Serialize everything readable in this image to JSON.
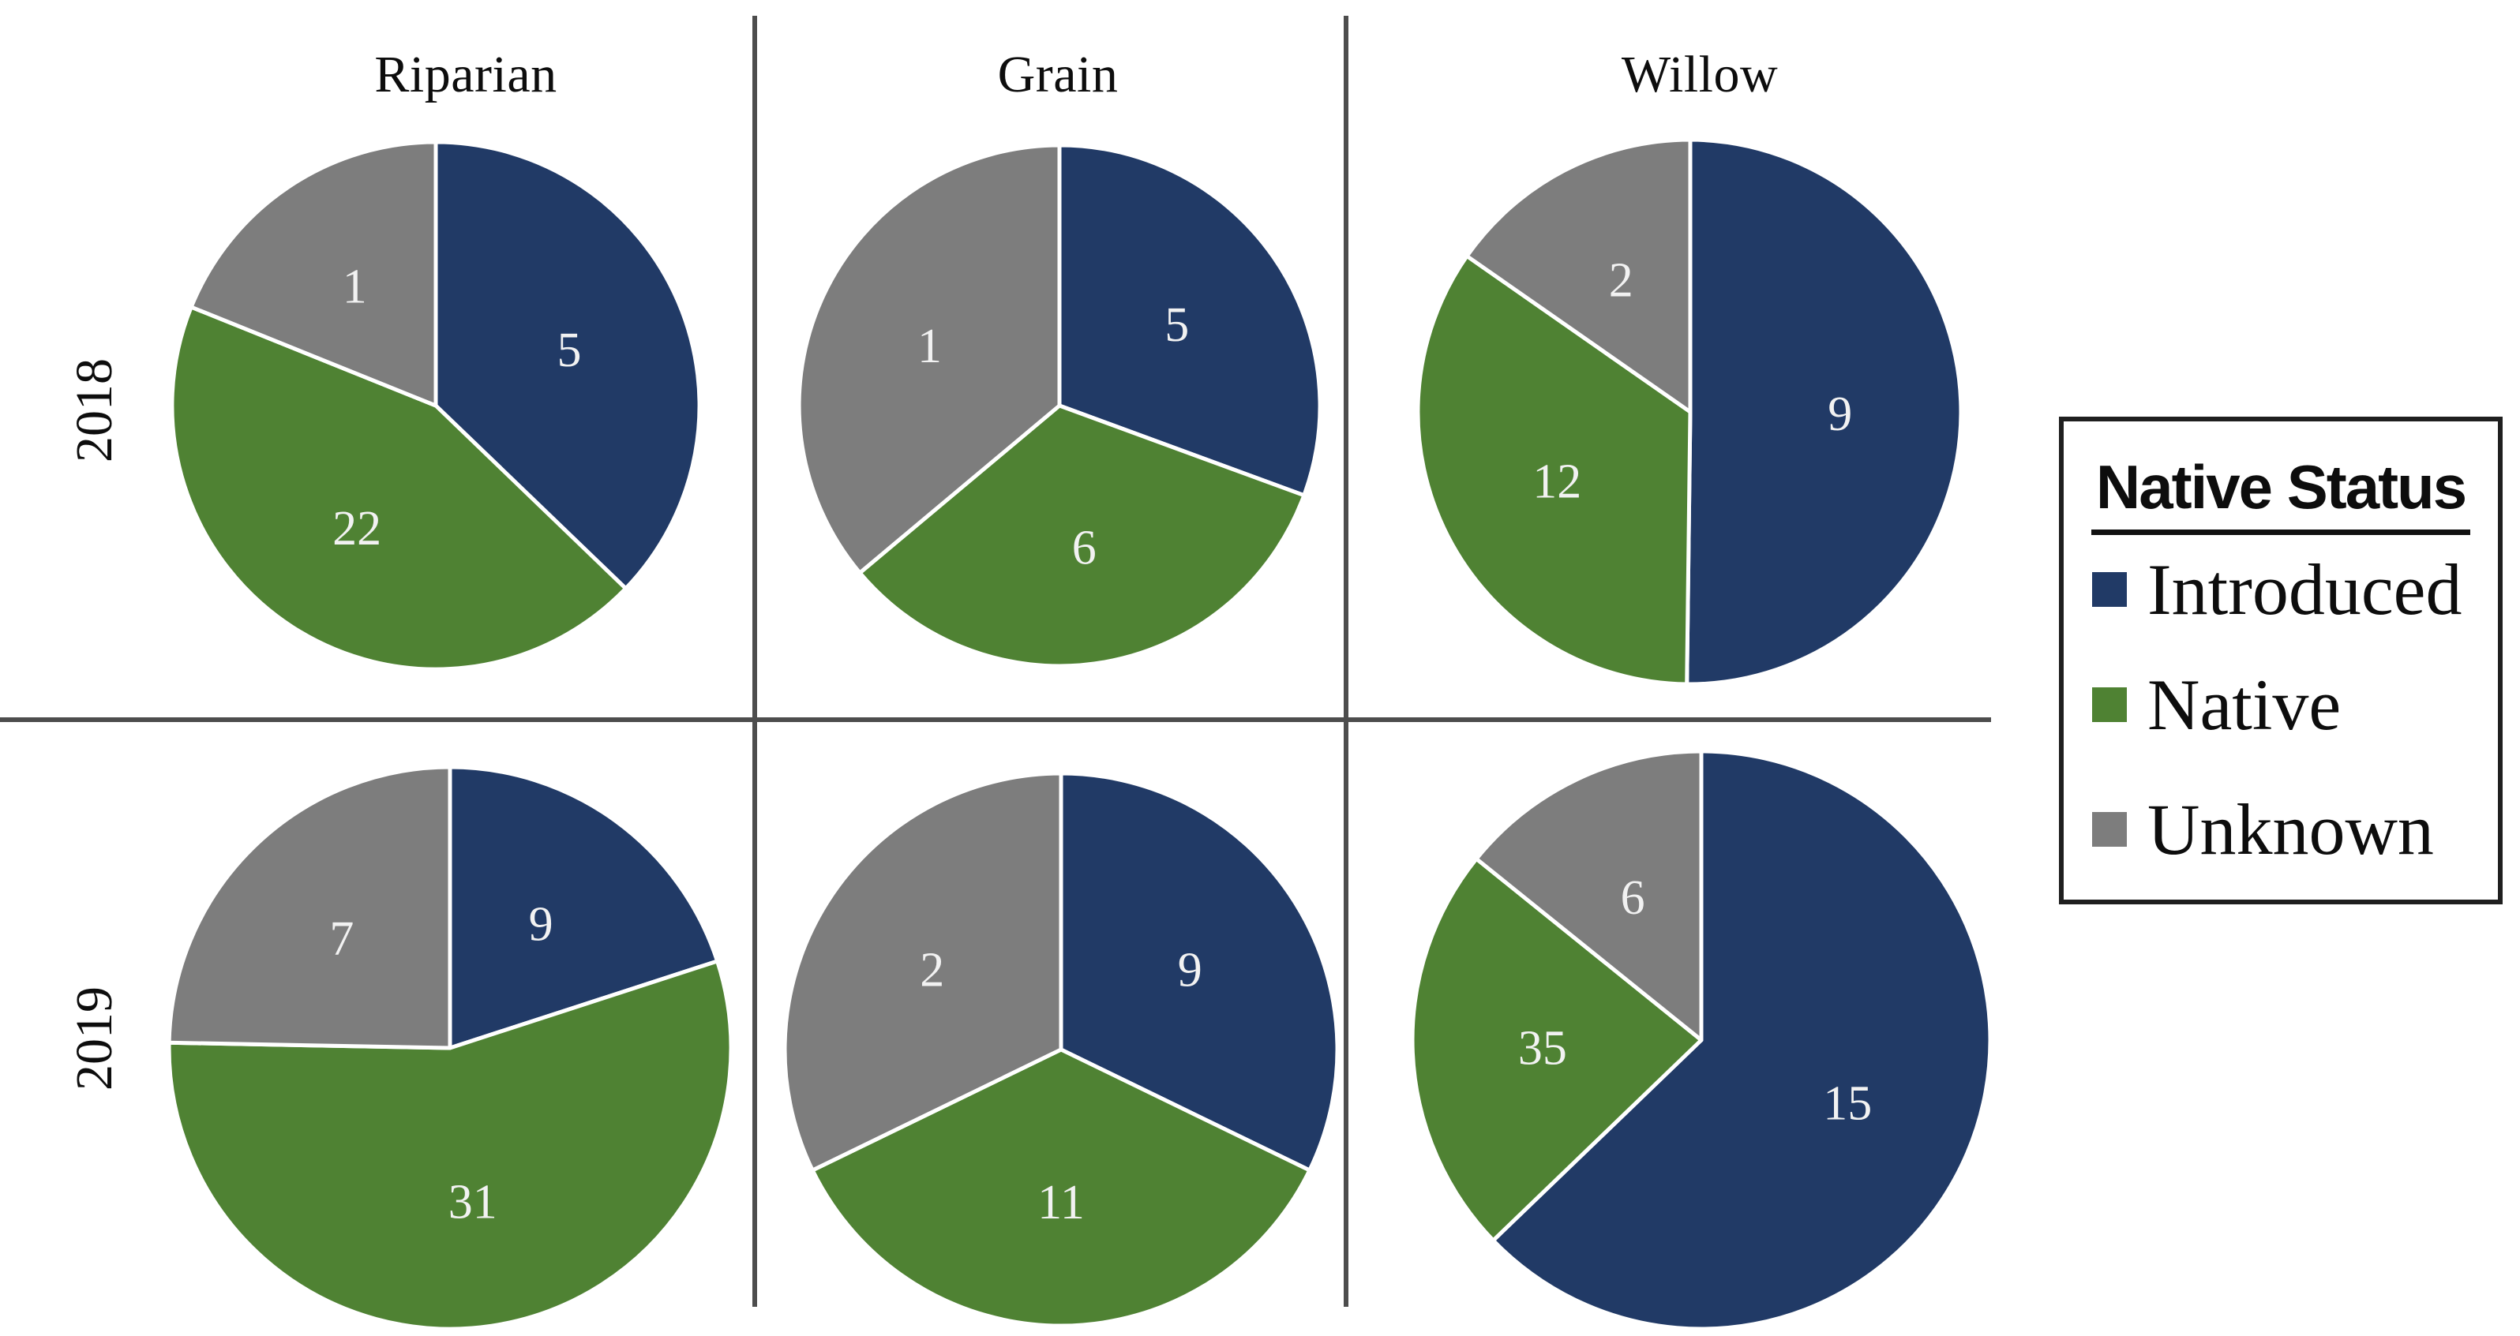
{
  "figure": {
    "columns": [
      "Riparian",
      "Grain",
      "Willow"
    ],
    "rows": [
      "2018",
      "2019"
    ]
  },
  "legend": {
    "title": "Native Status",
    "items": [
      {
        "label": "Introduced",
        "color_key": "introduced"
      },
      {
        "label": "Native",
        "color_key": "native"
      },
      {
        "label": "Unknown",
        "color_key": "unknown"
      }
    ]
  },
  "colors": {
    "introduced": "#213a66",
    "native": "#4f8233",
    "unknown": "#7d7d7d"
  },
  "chart_data": {
    "type": "pie",
    "categories": [
      "Introduced",
      "Native",
      "Unknown"
    ],
    "legend_title": "Native Status",
    "grid": {
      "rows": [
        "2018",
        "2019"
      ],
      "columns": [
        "Riparian",
        "Grain",
        "Willow"
      ]
    },
    "note": "White numbers printed inside slices are the labeled values; 'fraction' is the drawn angular share of each slice (clockwise from 12 o'clock, order Introduced, Native, Unknown).",
    "charts": [
      {
        "id": "riparian-2018",
        "column": "Riparian",
        "row": "2018",
        "center": [
          552,
          514
        ],
        "radius": 334,
        "slices": [
          {
            "category": "Introduced",
            "value": 5,
            "fraction": 0.372
          },
          {
            "category": "Native",
            "value": 22,
            "fraction": 0.439
          },
          {
            "category": "Unknown",
            "value": 1,
            "fraction": 0.189
          }
        ]
      },
      {
        "id": "grain-2018",
        "column": "Grain",
        "row": "2018",
        "center": [
          1342,
          514
        ],
        "radius": 330,
        "slices": [
          {
            "category": "Introduced",
            "value": 5,
            "fraction": 0.306
          },
          {
            "category": "Native",
            "value": 6,
            "fraction": 0.333
          },
          {
            "category": "Unknown",
            "value": 1,
            "fraction": 0.361
          }
        ]
      },
      {
        "id": "willow-2018",
        "column": "Willow",
        "row": "2018",
        "center": [
          2141,
          522
        ],
        "radius": 345,
        "slices": [
          {
            "category": "Introduced",
            "value": 9,
            "fraction": 0.502
          },
          {
            "category": "Native",
            "value": 12,
            "fraction": 0.345
          },
          {
            "category": "Unknown",
            "value": 2,
            "fraction": 0.153
          }
        ]
      },
      {
        "id": "riparian-2019",
        "column": "Riparian",
        "row": "2019",
        "center": [
          570,
          1328
        ],
        "radius": 356,
        "slices": [
          {
            "category": "Introduced",
            "value": 9,
            "fraction": 0.2
          },
          {
            "category": "Native",
            "value": 31,
            "fraction": 0.553
          },
          {
            "category": "Unknown",
            "value": 7,
            "fraction": 0.247
          }
        ]
      },
      {
        "id": "grain-2019",
        "column": "Grain",
        "row": "2019",
        "center": [
          1344,
          1330
        ],
        "radius": 350,
        "slices": [
          {
            "category": "Introduced",
            "value": 9,
            "fraction": 0.322
          },
          {
            "category": "Native",
            "value": 11,
            "fraction": 0.356
          },
          {
            "category": "Unknown",
            "value": 2,
            "fraction": 0.322
          }
        ]
      },
      {
        "id": "willow-2019",
        "column": "Willow",
        "row": "2019",
        "center": [
          2155,
          1318
        ],
        "radius": 366,
        "slices": [
          {
            "category": "Introduced",
            "value": 15,
            "fraction": 0.628
          },
          {
            "category": "Native",
            "value": 35,
            "fraction": 0.23
          },
          {
            "category": "Unknown",
            "value": 6,
            "fraction": 0.142
          }
        ]
      }
    ]
  }
}
